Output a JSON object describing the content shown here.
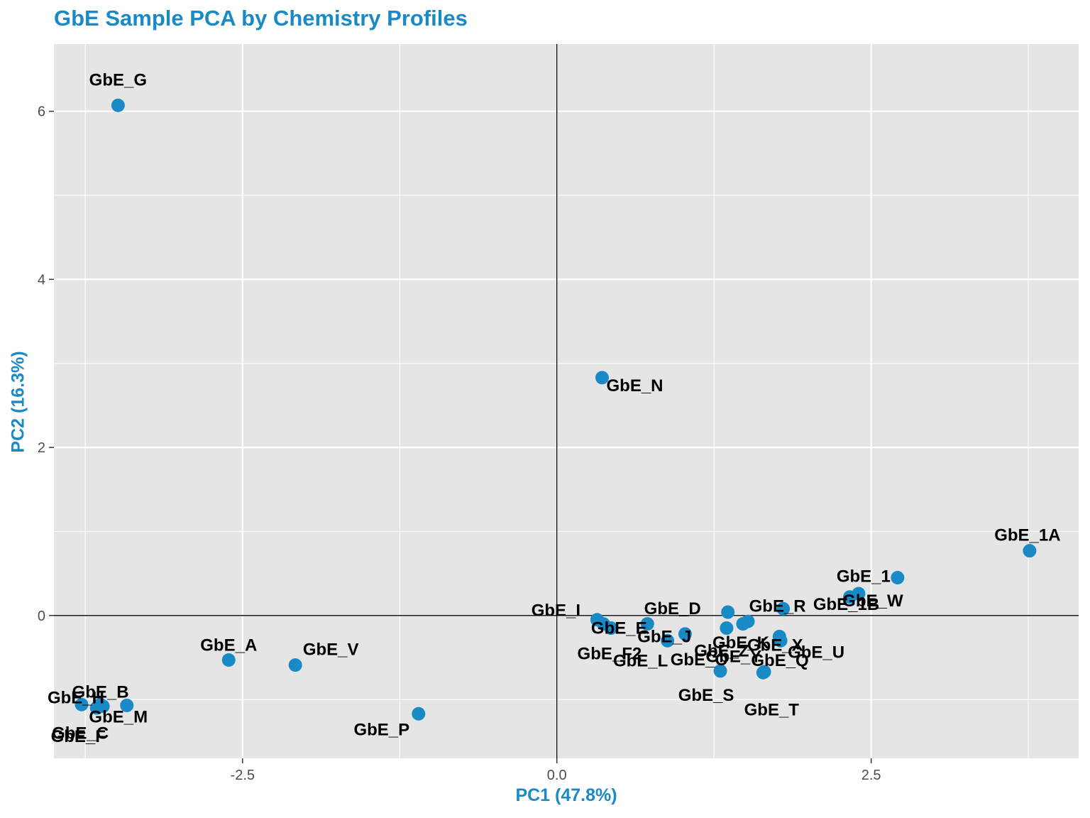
{
  "chart_data": {
    "type": "scatter",
    "title": "GbE Sample PCA by Chemistry Profiles",
    "xlabel": "PC1 (47.8%)",
    "ylabel": "PC2 (16.3%)",
    "xlim": [
      -4.0,
      4.15
    ],
    "ylim": [
      -1.7,
      6.8
    ],
    "x_ticks": [
      -2.5,
      0.0,
      2.5
    ],
    "x_tick_labels": [
      "-2.5",
      "0.0",
      "2.5"
    ],
    "y_ticks": [
      0,
      2,
      4,
      6
    ],
    "y_tick_labels": [
      "0",
      "2",
      "4",
      "6"
    ],
    "grid": true,
    "reference_lines": {
      "x": 0,
      "y": 0
    },
    "point_color": "#1a8ac6",
    "panel_color": "#e5e5e5",
    "grid_color": "#ffffff",
    "points": [
      {
        "label": "GbE_G",
        "x": -3.49,
        "y": 6.07
      },
      {
        "label": "GbE_N",
        "x": 0.36,
        "y": 2.83
      },
      {
        "label": "GbE_1A",
        "x": 3.76,
        "y": 0.77
      },
      {
        "label": "GbE_1",
        "x": 2.71,
        "y": 0.45
      },
      {
        "label": "GbE_W",
        "x": 2.4,
        "y": 0.26
      },
      {
        "label": "GbE_1B",
        "x": 2.33,
        "y": 0.22
      },
      {
        "label": "GbE_R",
        "x": 1.8,
        "y": 0.08
      },
      {
        "label": "GbE_D",
        "x": 1.36,
        "y": 0.04
      },
      {
        "label": "GbE_K",
        "x": 1.52,
        "y": -0.07
      },
      {
        "label": "GbE_Z",
        "x": 1.48,
        "y": -0.1
      },
      {
        "label": "GbE_I",
        "x": 0.32,
        "y": -0.05
      },
      {
        "label": "GbE_E",
        "x": 0.37,
        "y": -0.1
      },
      {
        "label": "GbE_F2",
        "x": 0.43,
        "y": -0.15
      },
      {
        "label": "GbE_J",
        "x": 0.72,
        "y": -0.1
      },
      {
        "label": "GbE_Y",
        "x": 1.35,
        "y": -0.15
      },
      {
        "label": "GbE_X",
        "x": 1.77,
        "y": -0.25
      },
      {
        "label": "GbE_O",
        "x": 1.02,
        "y": -0.22
      },
      {
        "label": "GbE_U",
        "x": 1.78,
        "y": -0.3
      },
      {
        "label": "GbE_L",
        "x": 0.88,
        "y": -0.3
      },
      {
        "label": "GbE_S",
        "x": 1.3,
        "y": -0.66
      },
      {
        "label": "GbE_Q",
        "x": 1.65,
        "y": -0.67
      },
      {
        "label": "GbE_T",
        "x": 1.64,
        "y": -0.68
      },
      {
        "label": "GbE_A",
        "x": -2.61,
        "y": -0.53
      },
      {
        "label": "GbE_V",
        "x": -2.08,
        "y": -0.59
      },
      {
        "label": "GbE_P",
        "x": -1.1,
        "y": -1.17
      },
      {
        "label": "GbE_B",
        "x": -3.63,
        "y": -1.06
      },
      {
        "label": "GbE_H",
        "x": -3.78,
        "y": -1.06
      },
      {
        "label": "GbE_M",
        "x": -3.42,
        "y": -1.07
      },
      {
        "label": "GbE_C",
        "x": -3.61,
        "y": -1.08
      },
      {
        "label": "GbE_F",
        "x": -3.66,
        "y": -1.1
      }
    ]
  }
}
